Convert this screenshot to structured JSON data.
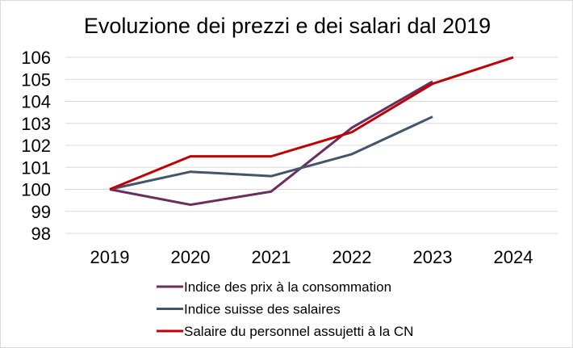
{
  "chart_data": {
    "type": "line",
    "title": "Evoluzione dei prezzi e dei salari dal 2019",
    "xlabel": "",
    "ylabel": "",
    "categories": [
      "2019",
      "2020",
      "2021",
      "2022",
      "2023",
      "2024"
    ],
    "ylim": [
      98,
      106
    ],
    "yticks": [
      98,
      99,
      100,
      101,
      102,
      103,
      104,
      105,
      106
    ],
    "grid": true,
    "legend_position": "bottom",
    "series": [
      {
        "name": "Indice des prix à la consommation",
        "color": "#6b2c5f",
        "values": [
          100,
          99.3,
          99.9,
          102.8,
          104.9,
          null
        ]
      },
      {
        "name": "Indice suisse des salaires",
        "color": "#44546a",
        "values": [
          100,
          100.8,
          100.6,
          101.6,
          103.3,
          null
        ]
      },
      {
        "name": "Salaire du personnel assujetti à la CN",
        "color": "#c00000",
        "values": [
          100,
          101.5,
          101.5,
          102.6,
          104.8,
          106.0
        ]
      }
    ]
  }
}
